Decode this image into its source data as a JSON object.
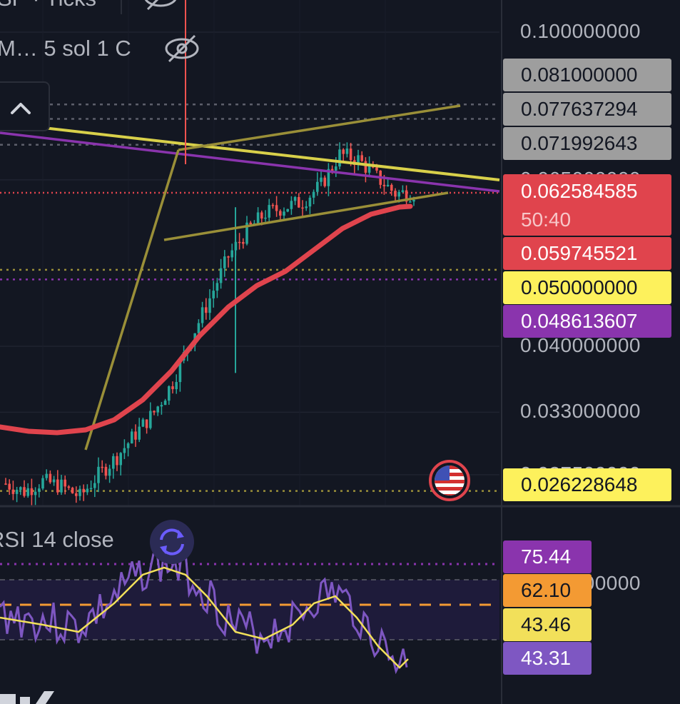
{
  "legend": {
    "top_left_partial": "SP · Ticks",
    "row2": "M…  5 sol 1 C",
    "rsi": "RSI 14 close"
  },
  "price_axis": {
    "ticks": [
      "0.100000000",
      "0.065000000",
      "0.040000000",
      "0.033000000",
      "0.027500000",
      "0.020000000"
    ]
  },
  "price_badges": [
    {
      "value": "0.081000000",
      "bg": "#9e9e9e",
      "fg": "#131722"
    },
    {
      "value": "0.077637294",
      "bg": "#9e9e9e",
      "fg": "#131722"
    },
    {
      "value": "0.071992643",
      "bg": "#9e9e9e",
      "fg": "#131722"
    },
    {
      "value": "0.062584585",
      "sub": "50:40",
      "bg": "#e0444d",
      "fg": "#ffffff"
    },
    {
      "value": "0.059745521",
      "bg": "#e0444d",
      "fg": "#ffffff"
    },
    {
      "value": "0.050000000",
      "bg": "#fdf15c",
      "fg": "#131722"
    },
    {
      "value": "0.048613607",
      "bg": "#8a34ad",
      "fg": "#ffffff"
    },
    {
      "value": "0.026228648",
      "bg": "#fdf15c",
      "fg": "#131722"
    }
  ],
  "rsi_badges": [
    {
      "value": "75.44",
      "bg": "#8a34ad",
      "fg": "#ffffff"
    },
    {
      "value": "62.10",
      "bg": "#f39a33",
      "fg": "#131722"
    },
    {
      "value": "43.46",
      "bg": "#f2e05a",
      "fg": "#131722"
    },
    {
      "value": "43.31",
      "bg": "#7e57c2",
      "fg": "#ffffff"
    }
  ],
  "colors": {
    "background": "#131722",
    "up_candle": "#26a69a",
    "down_candle": "#ef5350",
    "ma": "#e0444d",
    "trendline_yellow": "#d8d04a",
    "trendline_olive": "#9a8f38",
    "trendline_purple": "#8a34ad",
    "rsi_line": "#7e57c2",
    "rsi_ma": "#f2e05a"
  },
  "chart_data": {
    "type": "candlestick",
    "y_scale": "log",
    "y_ticks": [
      0.1,
      0.065,
      0.04,
      0.033,
      0.0275,
      0.02
    ],
    "horizontal_levels": [
      0.081,
      0.077637294,
      0.071992643,
      0.062584585,
      0.05,
      0.048613607,
      0.026228648
    ],
    "last_price": 0.062584585,
    "countdown": "50:40",
    "moving_average_last": 0.059745521,
    "close_path": [
      {
        "x": 0,
        "y": 0.0268
      },
      {
        "x": 5,
        "y": 0.0262
      },
      {
        "x": 10,
        "y": 0.027
      },
      {
        "x": 15,
        "y": 0.0266
      },
      {
        "x": 20,
        "y": 0.0258
      },
      {
        "x": 25,
        "y": 0.0275
      },
      {
        "x": 30,
        "y": 0.029
      },
      {
        "x": 35,
        "y": 0.031
      },
      {
        "x": 40,
        "y": 0.033
      },
      {
        "x": 45,
        "y": 0.036
      },
      {
        "x": 50,
        "y": 0.041
      },
      {
        "x": 55,
        "y": 0.046
      },
      {
        "x": 60,
        "y": 0.052
      },
      {
        "x": 65,
        "y": 0.056
      },
      {
        "x": 70,
        "y": 0.059
      },
      {
        "x": 75,
        "y": 0.06
      },
      {
        "x": 80,
        "y": 0.061
      },
      {
        "x": 85,
        "y": 0.064
      },
      {
        "x": 90,
        "y": 0.07
      },
      {
        "x": 95,
        "y": 0.069
      },
      {
        "x": 100,
        "y": 0.0655
      },
      {
        "x": 105,
        "y": 0.0625
      },
      {
        "x": 110,
        "y": 0.0626
      }
    ],
    "rsi": {
      "period": 14,
      "source": "close",
      "levels": [
        75.44,
        62.1
      ],
      "rsi_last": 43.31,
      "rsi_ma_last": 43.46
    }
  }
}
